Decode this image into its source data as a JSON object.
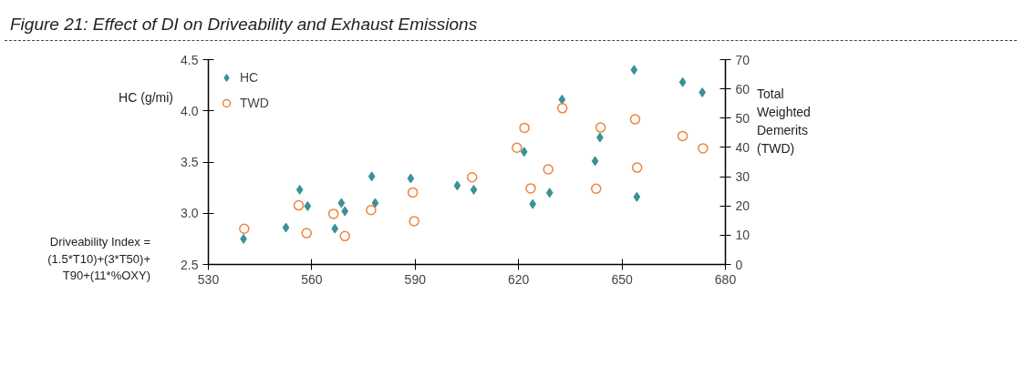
{
  "chart_data": {
    "type": "scatter",
    "title": "Figure 21: Effect of DI on Driveability and Exhaust Emissions",
    "ylabel": "HC (g/mi)",
    "y2label": "Total Weighted Demerits (TWD)",
    "annotations": [
      "Driveability Index =\n(1.5*T10)+(3*T50)+\nT90+(11*%OXY)"
    ],
    "xlim": [
      530,
      680
    ],
    "xticks": [
      530,
      560,
      590,
      620,
      650,
      680
    ],
    "ylim": [
      2.5,
      4.5
    ],
    "yticks": [
      2.5,
      {
        "value": 3,
        "label": "3.0"
      },
      3.5,
      {
        "value": 4,
        "label": "4.0"
      },
      4.5
    ],
    "y2lim": [
      0,
      70
    ],
    "y2ticks": [
      0,
      10,
      20,
      30,
      40,
      50,
      60,
      70
    ],
    "grid": false,
    "legend": "top left",
    "series": [
      {
        "name": "HC",
        "color": "#3a9197",
        "marker": "diamond",
        "x": [
          540.2,
          552.5,
          556.5,
          558.8,
          566.7,
          568.6,
          569.6,
          577.4,
          578.4,
          588.7,
          602.2,
          607.0,
          621.6,
          624.1,
          629.0,
          632.6,
          642.2,
          643.6,
          653.5,
          654.3,
          667.6,
          673.3
        ],
        "values": [
          2.75,
          2.86,
          3.23,
          3.07,
          2.85,
          3.1,
          3.02,
          3.36,
          3.1,
          3.34,
          3.27,
          3.23,
          3.6,
          3.09,
          3.2,
          4.11,
          3.51,
          3.74,
          4.4,
          3.16,
          4.28,
          4.18
        ]
      },
      {
        "name": "TWD",
        "color": "#f0823a",
        "marker": "circle",
        "axis": "y2",
        "x": [
          540.4,
          556.2,
          558.5,
          566.3,
          569.6,
          577.2,
          589.3,
          589.7,
          606.5,
          619.5,
          621.7,
          623.5,
          628.6,
          632.7,
          642.5,
          643.8,
          653.8,
          654.4,
          667.6,
          673.5
        ],
        "values": [
          12.2,
          20.2,
          10.7,
          17.3,
          9.7,
          18.6,
          24.6,
          14.8,
          29.8,
          39.9,
          46.7,
          26.0,
          32.5,
          53.4,
          25.9,
          46.8,
          49.6,
          33.1,
          43.9,
          39.7
        ]
      }
    ]
  }
}
